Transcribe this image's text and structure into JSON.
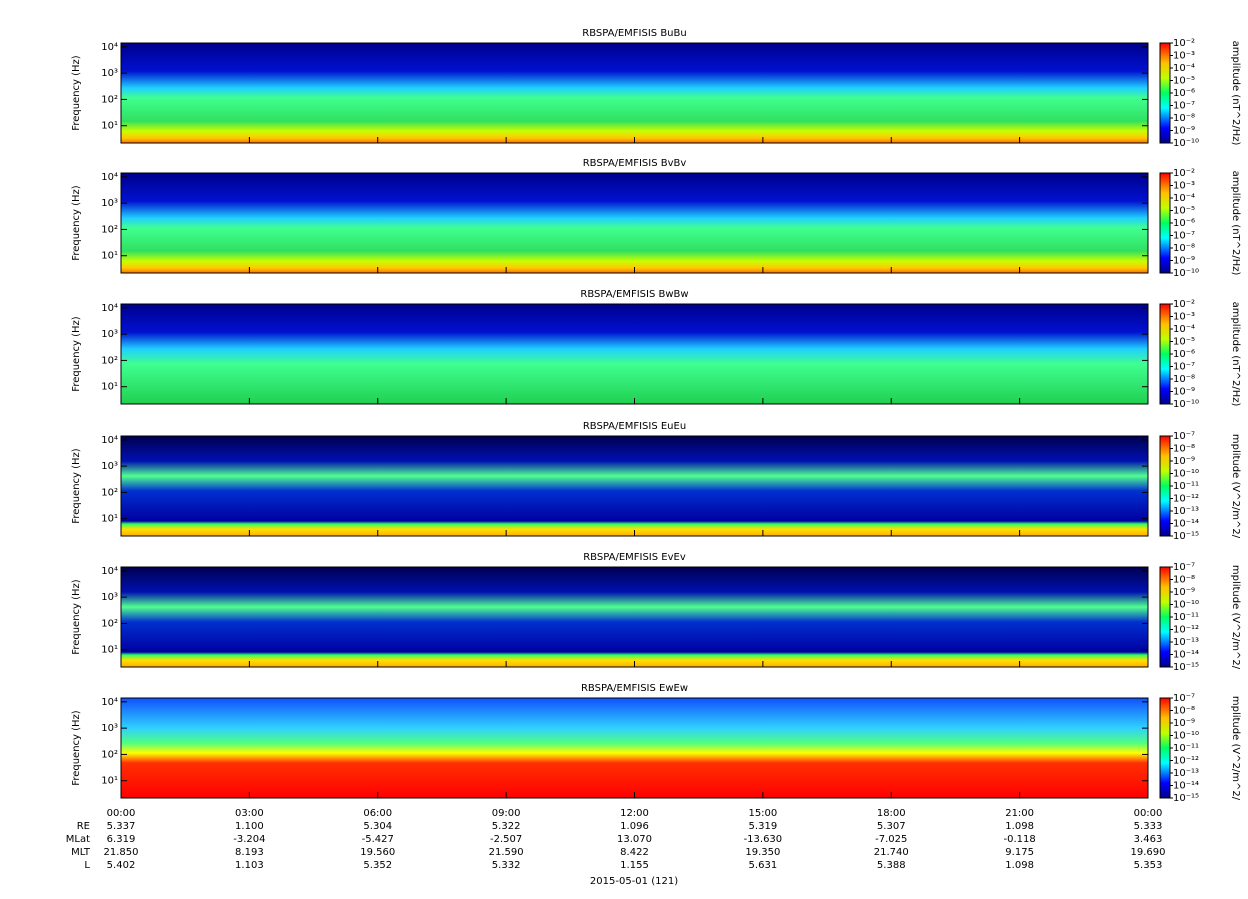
{
  "chart_data": [
    {
      "type": "spectrogram",
      "title": "RBSPA/EMFISIS  BuBu",
      "ylabel": "Frequency (Hz)",
      "ylim": [
        2.2,
        14000
      ],
      "log_y": true,
      "yticks": [
        {
          "value": 10,
          "label": "10¹"
        },
        {
          "value": 100,
          "label": "10²"
        },
        {
          "value": 1000,
          "label": "10³"
        },
        {
          "value": 10000,
          "label": "10⁴"
        }
      ],
      "zlabel": "amplitude (nT^2/Hz)",
      "zlim": [
        1e-10,
        0.01
      ],
      "log_z": true,
      "zticks": [
        {
          "value": 1e-10,
          "label": "10⁻¹⁰"
        },
        {
          "value": 1e-09,
          "label": "10⁻⁹"
        },
        {
          "value": 1e-08,
          "label": "10⁻⁸"
        },
        {
          "value": 1e-07,
          "label": "10⁻⁷"
        },
        {
          "value": 1e-06,
          "label": "10⁻⁶"
        },
        {
          "value": 1e-05,
          "label": "10⁻⁵"
        },
        {
          "value": 0.0001,
          "label": "10⁻⁴"
        },
        {
          "value": 0.001,
          "label": "10⁻³"
        },
        {
          "value": 0.01,
          "label": "10⁻²"
        }
      ]
    },
    {
      "type": "spectrogram",
      "title": "RBSPA/EMFISIS  BvBv",
      "ylabel": "Frequency (Hz)",
      "ylim": [
        2.2,
        14000
      ],
      "log_y": true,
      "yticks": [
        {
          "value": 10,
          "label": "10¹"
        },
        {
          "value": 100,
          "label": "10²"
        },
        {
          "value": 1000,
          "label": "10³"
        },
        {
          "value": 10000,
          "label": "10⁴"
        }
      ],
      "zlabel": "amplitude (nT^2/Hz)",
      "zlim": [
        1e-10,
        0.01
      ],
      "log_z": true,
      "zticks": [
        {
          "value": 1e-10,
          "label": "10⁻¹⁰"
        },
        {
          "value": 1e-09,
          "label": "10⁻⁹"
        },
        {
          "value": 1e-08,
          "label": "10⁻⁸"
        },
        {
          "value": 1e-07,
          "label": "10⁻⁷"
        },
        {
          "value": 1e-06,
          "label": "10⁻⁶"
        },
        {
          "value": 1e-05,
          "label": "10⁻⁵"
        },
        {
          "value": 0.0001,
          "label": "10⁻⁴"
        },
        {
          "value": 0.001,
          "label": "10⁻³"
        },
        {
          "value": 0.01,
          "label": "10⁻²"
        }
      ]
    },
    {
      "type": "spectrogram",
      "title": "RBSPA/EMFISIS  BwBw",
      "ylabel": "Frequency (Hz)",
      "ylim": [
        2.2,
        14000
      ],
      "log_y": true,
      "yticks": [
        {
          "value": 10,
          "label": "10¹"
        },
        {
          "value": 100,
          "label": "10²"
        },
        {
          "value": 1000,
          "label": "10³"
        },
        {
          "value": 10000,
          "label": "10⁴"
        }
      ],
      "zlabel": "amplitude (nT^2/Hz)",
      "zlim": [
        1e-10,
        0.01
      ],
      "log_z": true,
      "zticks": [
        {
          "value": 1e-10,
          "label": "10⁻¹⁰"
        },
        {
          "value": 1e-09,
          "label": "10⁻⁹"
        },
        {
          "value": 1e-08,
          "label": "10⁻⁸"
        },
        {
          "value": 1e-07,
          "label": "10⁻⁷"
        },
        {
          "value": 1e-06,
          "label": "10⁻⁶"
        },
        {
          "value": 1e-05,
          "label": "10⁻⁵"
        },
        {
          "value": 0.0001,
          "label": "10⁻⁴"
        },
        {
          "value": 0.001,
          "label": "10⁻³"
        },
        {
          "value": 0.01,
          "label": "10⁻²"
        }
      ]
    },
    {
      "type": "spectrogram",
      "title": "RBSPA/EMFISIS  EuEu",
      "ylabel": "Frequency (Hz)",
      "ylim": [
        2.2,
        14000
      ],
      "log_y": true,
      "yticks": [
        {
          "value": 10,
          "label": "10¹"
        },
        {
          "value": 100,
          "label": "10²"
        },
        {
          "value": 1000,
          "label": "10³"
        },
        {
          "value": 10000,
          "label": "10⁴"
        }
      ],
      "zlabel": "mplitude (V^2/m^2/",
      "zlim": [
        1e-15,
        1e-07
      ],
      "log_z": true,
      "zticks": [
        {
          "value": 1e-15,
          "label": "10⁻¹⁵"
        },
        {
          "value": 1e-14,
          "label": "10⁻¹⁴"
        },
        {
          "value": 1e-13,
          "label": "10⁻¹³"
        },
        {
          "value": 1e-12,
          "label": "10⁻¹²"
        },
        {
          "value": 1e-11,
          "label": "10⁻¹¹"
        },
        {
          "value": 1e-10,
          "label": "10⁻¹⁰"
        },
        {
          "value": 1e-09,
          "label": "10⁻⁹"
        },
        {
          "value": 1e-08,
          "label": "10⁻⁸"
        },
        {
          "value": 1e-07,
          "label": "10⁻⁷"
        }
      ]
    },
    {
      "type": "spectrogram",
      "title": "RBSPA/EMFISIS  EvEv",
      "ylabel": "Frequency (Hz)",
      "ylim": [
        2.2,
        14000
      ],
      "log_y": true,
      "yticks": [
        {
          "value": 10,
          "label": "10¹"
        },
        {
          "value": 100,
          "label": "10²"
        },
        {
          "value": 1000,
          "label": "10³"
        },
        {
          "value": 10000,
          "label": "10⁴"
        }
      ],
      "zlabel": "mplitude (V^2/m^2/",
      "zlim": [
        1e-15,
        1e-07
      ],
      "log_z": true,
      "zticks": [
        {
          "value": 1e-15,
          "label": "10⁻¹⁵"
        },
        {
          "value": 1e-14,
          "label": "10⁻¹⁴"
        },
        {
          "value": 1e-13,
          "label": "10⁻¹³"
        },
        {
          "value": 1e-12,
          "label": "10⁻¹²"
        },
        {
          "value": 1e-11,
          "label": "10⁻¹¹"
        },
        {
          "value": 1e-10,
          "label": "10⁻¹⁰"
        },
        {
          "value": 1e-09,
          "label": "10⁻⁹"
        },
        {
          "value": 1e-08,
          "label": "10⁻⁸"
        },
        {
          "value": 1e-07,
          "label": "10⁻⁷"
        }
      ]
    },
    {
      "type": "spectrogram",
      "title": "RBSPA/EMFISIS  EwEw",
      "ylabel": "Frequency (Hz)",
      "ylim": [
        2.2,
        14000
      ],
      "log_y": true,
      "yticks": [
        {
          "value": 10,
          "label": "10¹"
        },
        {
          "value": 100,
          "label": "10²"
        },
        {
          "value": 1000,
          "label": "10³"
        },
        {
          "value": 10000,
          "label": "10⁴"
        }
      ],
      "zlabel": "mplitude (V^2/m^2/",
      "zlim": [
        1e-15,
        1e-07
      ],
      "log_z": true,
      "zticks": [
        {
          "value": 1e-15,
          "label": "10⁻¹⁵"
        },
        {
          "value": 1e-14,
          "label": "10⁻¹⁴"
        },
        {
          "value": 1e-13,
          "label": "10⁻¹³"
        },
        {
          "value": 1e-12,
          "label": "10⁻¹²"
        },
        {
          "value": 1e-11,
          "label": "10⁻¹¹"
        },
        {
          "value": 1e-10,
          "label": "10⁻¹⁰"
        },
        {
          "value": 1e-09,
          "label": "10⁻⁹"
        },
        {
          "value": 1e-08,
          "label": "10⁻⁸"
        },
        {
          "value": 1e-07,
          "label": "10⁻⁷"
        }
      ]
    }
  ],
  "time_axis": {
    "xlim": [
      0,
      24
    ],
    "xticks": [
      {
        "value": 0,
        "label": "00:00"
      },
      {
        "value": 3,
        "label": "03:00"
      },
      {
        "value": 6,
        "label": "06:00"
      },
      {
        "value": 9,
        "label": "09:00"
      },
      {
        "value": 12,
        "label": "12:00"
      },
      {
        "value": 15,
        "label": "15:00"
      },
      {
        "value": 18,
        "label": "18:00"
      },
      {
        "value": 21,
        "label": "21:00"
      },
      {
        "value": 24,
        "label": "00:00"
      }
    ],
    "ephemeris": [
      {
        "label": "RE",
        "values": [
          "5.337",
          "1.100",
          "5.304",
          "5.322",
          "1.096",
          "5.319",
          "5.307",
          "1.098",
          "5.333"
        ]
      },
      {
        "label": "MLat",
        "values": [
          "6.319",
          "-3.204",
          "-5.427",
          "-2.507",
          "13.070",
          "-13.630",
          "-7.025",
          "-0.118",
          "3.463"
        ]
      },
      {
        "label": "MLT",
        "values": [
          "21.850",
          "8.193",
          "19.560",
          "21.590",
          "8.422",
          "19.350",
          "21.740",
          "9.175",
          "19.690"
        ]
      },
      {
        "label": "L",
        "values": [
          "5.402",
          "1.103",
          "5.352",
          "5.332",
          "1.155",
          "5.631",
          "5.388",
          "1.098",
          "5.353"
        ]
      }
    ],
    "date": "2015-05-01 (121)"
  }
}
